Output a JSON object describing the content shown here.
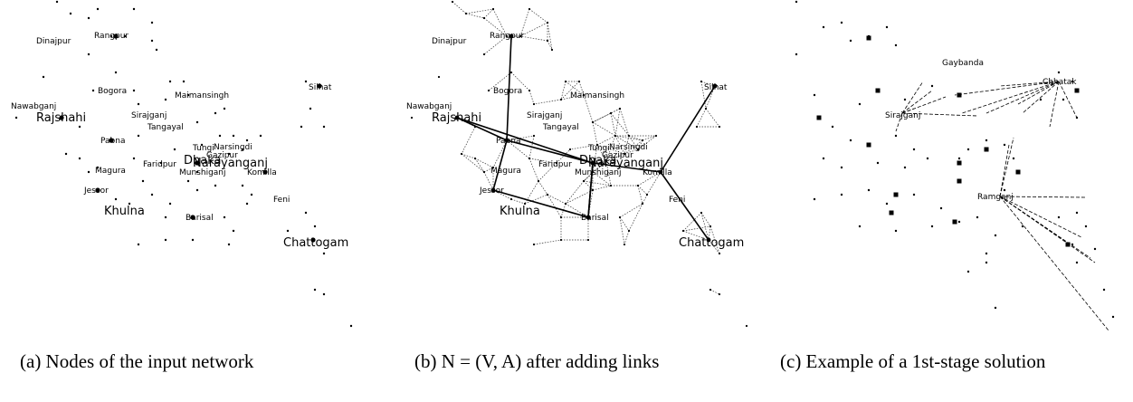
{
  "panels": [
    {
      "labels": [
        "Dinajpur",
        "Rangpur",
        "Bogora",
        "Maimansingh",
        "Silhat",
        "Nawabganj",
        "Rajshahi",
        "Sirajganj",
        "Tangayal",
        "Pabna",
        "Tungi",
        "Narsingdi",
        "Gazipur",
        "Dhaka",
        "Narayanganj",
        "Faridpur",
        "Magura",
        "Munshiganj",
        "Komilla",
        "Jessor",
        "Feni",
        "Khulna",
        "Barisal",
        "Chattogam"
      ],
      "caption": "(a) Nodes of the input network"
    },
    {
      "labels": [
        "Dinajpur",
        "Rangpur",
        "Bogora",
        "Maimansingh",
        "Silhat",
        "Nawabganj",
        "Rajshahi",
        "Sirajganj",
        "Tangayal",
        "Pabna",
        "Tungi",
        "Narsingdi",
        "Gazipur",
        "Dhaka",
        "Narayanganj",
        "Faridpur",
        "Magura",
        "Munshiganj",
        "Komilla",
        "Jessor",
        "Feni",
        "Khulna",
        "Barisal",
        "Chattogam"
      ],
      "caption": "(b) N = (V, A) after adding links"
    },
    {
      "labels": [
        "Gaybanda",
        "Chhatak",
        "Sirajganj",
        "Ramganj"
      ],
      "caption": "(c) Example of a 1st-stage solution"
    }
  ]
}
